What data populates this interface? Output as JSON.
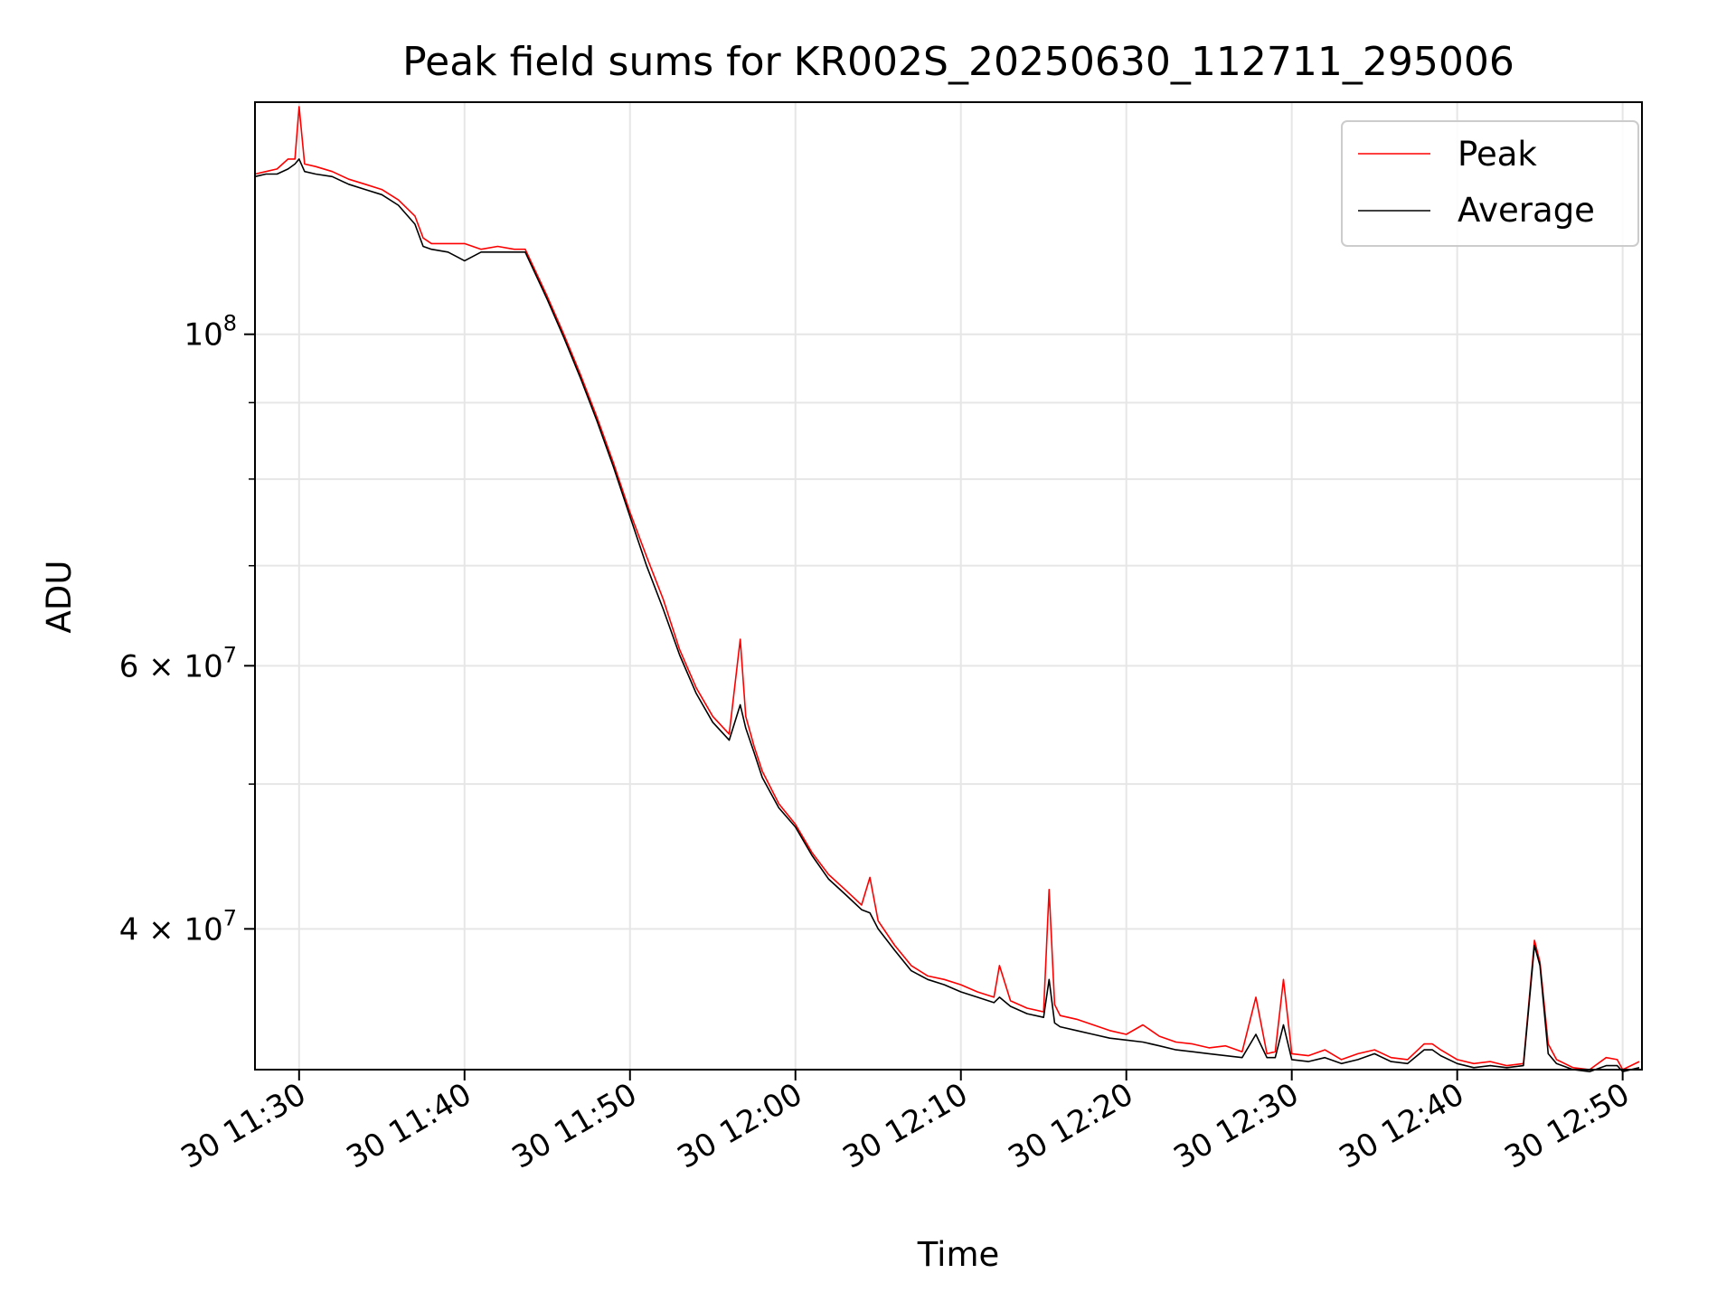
{
  "chart_data": {
    "type": "line",
    "title": "Peak field sums for KR002S_20250630_112711_295006",
    "xlabel": "Time",
    "ylabel": "ADU",
    "y_scale": "log",
    "grid": true,
    "legend_position": "top-right",
    "xlim": [
      "2025-06-30 11:27:20",
      "2025-06-30 12:51:10"
    ],
    "ylim": [
      32200000,
      143000000
    ],
    "x_ticks": [
      "30 11:30",
      "30 11:40",
      "30 11:50",
      "30 12:00",
      "30 12:10",
      "30 12:20",
      "30 12:30",
      "30 12:40",
      "30 12:50"
    ],
    "y_ticks": [
      "10^8",
      "6×10^7",
      "4×10^7"
    ],
    "series": [
      {
        "name": "Peak",
        "color": "#ff0000",
        "x": [
          "11:27:20",
          "11:28:00",
          "11:28:40",
          "11:29:20",
          "11:29:45",
          "11:30:00",
          "11:30:20",
          "11:31:00",
          "11:32:00",
          "11:33:00",
          "11:34:00",
          "11:35:00",
          "11:36:00",
          "11:37:00",
          "11:37:30",
          "11:38:00",
          "11:39:00",
          "11:40:00",
          "11:41:00",
          "11:42:00",
          "11:43:00",
          "11:43:40",
          "11:45:00",
          "11:46:00",
          "11:47:00",
          "11:48:00",
          "11:49:00",
          "11:50:00",
          "11:51:00",
          "11:52:00",
          "11:53:00",
          "11:54:00",
          "11:55:00",
          "11:56:00",
          "11:56:40",
          "11:57:00",
          "11:57:30",
          "11:58:00",
          "11:59:00",
          "12:00:00",
          "12:01:00",
          "12:02:00",
          "12:03:00",
          "12:04:00",
          "12:04:30",
          "12:05:00",
          "12:06:00",
          "12:07:00",
          "12:08:00",
          "12:09:00",
          "12:10:00",
          "12:11:00",
          "12:12:00",
          "12:12:20",
          "12:13:00",
          "12:14:00",
          "12:15:00",
          "12:15:20",
          "12:15:40",
          "12:16:00",
          "12:17:00",
          "12:18:00",
          "12:19:00",
          "12:20:00",
          "12:21:00",
          "12:22:00",
          "12:23:00",
          "12:24:00",
          "12:25:00",
          "12:26:00",
          "12:27:00",
          "12:27:50",
          "12:28:30",
          "12:29:00",
          "12:29:30",
          "12:30:00",
          "12:31:00",
          "12:32:00",
          "12:33:00",
          "12:34:00",
          "12:35:00",
          "12:36:00",
          "12:37:00",
          "12:38:00",
          "12:38:30",
          "12:39:00",
          "12:40:00",
          "12:41:00",
          "12:42:00",
          "12:43:00",
          "12:44:00",
          "12:44:40",
          "12:45:00",
          "12:45:30",
          "12:46:00",
          "12:47:00",
          "12:48:00",
          "12:49:00",
          "12:49:40",
          "12:50:00",
          "12:51:00"
        ],
        "y": [
          128000000,
          128500000,
          129000000,
          131000000,
          131000000,
          142000000,
          130000000,
          129500000,
          128500000,
          127000000,
          126000000,
          125000000,
          123000000,
          120000000,
          116000000,
          115000000,
          115000000,
          115000000,
          114000000,
          114500000,
          114000000,
          114000000,
          106000000,
          100000000,
          94000000,
          88000000,
          82000000,
          76000000,
          71000000,
          66500000,
          61500000,
          58000000,
          55500000,
          54000000,
          62500000,
          55500000,
          53000000,
          51000000,
          48500000,
          47000000,
          45000000,
          43500000,
          42500000,
          41500000,
          43300000,
          40500000,
          39000000,
          37800000,
          37200000,
          37000000,
          36700000,
          36300000,
          36000000,
          37800000,
          35800000,
          35400000,
          35200000,
          42500000,
          35600000,
          35000000,
          34800000,
          34500000,
          34200000,
          34000000,
          34500000,
          33900000,
          33600000,
          33500000,
          33300000,
          33400000,
          33100000,
          36000000,
          33000000,
          33100000,
          37000000,
          33000000,
          32900000,
          33200000,
          32700000,
          33000000,
          33200000,
          32800000,
          32700000,
          33500000,
          33500000,
          33200000,
          32700000,
          32500000,
          32600000,
          32400000,
          32500000,
          39300000,
          38000000,
          33500000,
          32700000,
          32300000,
          32200000,
          32800000,
          32700000,
          32200000,
          32600000
        ]
      },
      {
        "name": "Average",
        "color": "#000000",
        "x": [
          "11:27:20",
          "11:28:00",
          "11:28:40",
          "11:29:20",
          "11:29:45",
          "11:30:00",
          "11:30:20",
          "11:31:00",
          "11:32:00",
          "11:33:00",
          "11:34:00",
          "11:35:00",
          "11:36:00",
          "11:37:00",
          "11:37:30",
          "11:38:00",
          "11:39:00",
          "11:40:00",
          "11:41:00",
          "11:42:00",
          "11:43:00",
          "11:43:40",
          "11:45:00",
          "11:46:00",
          "11:47:00",
          "11:48:00",
          "11:49:00",
          "11:50:00",
          "11:51:00",
          "11:52:00",
          "11:53:00",
          "11:54:00",
          "11:55:00",
          "11:56:00",
          "11:56:40",
          "11:57:00",
          "11:57:30",
          "11:58:00",
          "11:59:00",
          "12:00:00",
          "12:01:00",
          "12:02:00",
          "12:03:00",
          "12:04:00",
          "12:04:30",
          "12:05:00",
          "12:06:00",
          "12:07:00",
          "12:08:00",
          "12:09:00",
          "12:10:00",
          "12:11:00",
          "12:12:00",
          "12:12:20",
          "12:13:00",
          "12:14:00",
          "12:15:00",
          "12:15:20",
          "12:15:40",
          "12:16:00",
          "12:17:00",
          "12:18:00",
          "12:19:00",
          "12:20:00",
          "12:21:00",
          "12:22:00",
          "12:23:00",
          "12:24:00",
          "12:25:00",
          "12:26:00",
          "12:27:00",
          "12:27:50",
          "12:28:30",
          "12:29:00",
          "12:29:30",
          "12:30:00",
          "12:31:00",
          "12:32:00",
          "12:33:00",
          "12:34:00",
          "12:35:00",
          "12:36:00",
          "12:37:00",
          "12:38:00",
          "12:38:30",
          "12:39:00",
          "12:40:00",
          "12:41:00",
          "12:42:00",
          "12:43:00",
          "12:44:00",
          "12:44:40",
          "12:45:00",
          "12:45:30",
          "12:46:00",
          "12:47:00",
          "12:48:00",
          "12:49:00",
          "12:49:40",
          "12:50:00",
          "12:51:00"
        ],
        "y": [
          127500000,
          128000000,
          128000000,
          129000000,
          130000000,
          131000000,
          128500000,
          128000000,
          127500000,
          126000000,
          125000000,
          124000000,
          122000000,
          118500000,
          114500000,
          114000000,
          113500000,
          112000000,
          113500000,
          113500000,
          113500000,
          113500000,
          105500000,
          99500000,
          93500000,
          87500000,
          81500000,
          75500000,
          70000000,
          65500000,
          61000000,
          57500000,
          55000000,
          53500000,
          56500000,
          54500000,
          52500000,
          50500000,
          48200000,
          46800000,
          44800000,
          43200000,
          42200000,
          41200000,
          41000000,
          40000000,
          38700000,
          37500000,
          37000000,
          36700000,
          36300000,
          36000000,
          35700000,
          36000000,
          35500000,
          35100000,
          34900000,
          37000000,
          34600000,
          34400000,
          34200000,
          34000000,
          33800000,
          33700000,
          33600000,
          33400000,
          33200000,
          33100000,
          33000000,
          32900000,
          32800000,
          34000000,
          32800000,
          32800000,
          34500000,
          32700000,
          32600000,
          32800000,
          32500000,
          32700000,
          33000000,
          32600000,
          32500000,
          33200000,
          33200000,
          32900000,
          32500000,
          32300000,
          32400000,
          32300000,
          32400000,
          39000000,
          37800000,
          33000000,
          32500000,
          32200000,
          32100000,
          32400000,
          32400000,
          32100000,
          32300000
        ]
      }
    ]
  }
}
